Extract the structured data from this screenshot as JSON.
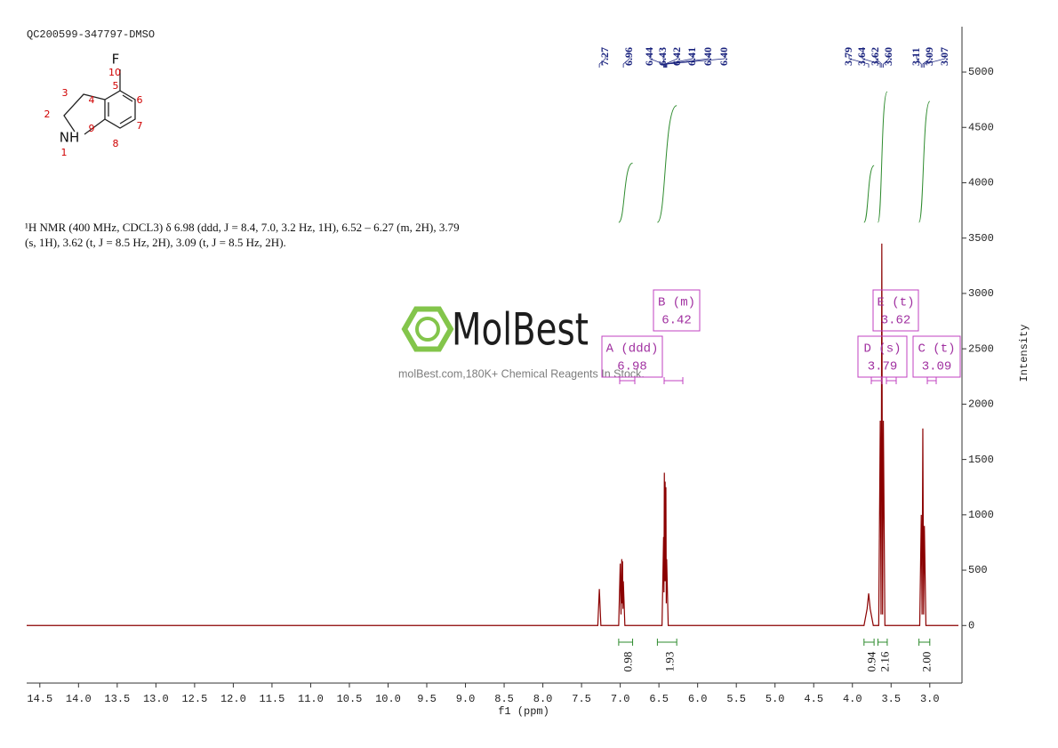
{
  "sample_id": "QC200599-347797-DMSO",
  "structure": {
    "atoms": [
      "F",
      "10",
      "3",
      "2",
      "4",
      "5",
      "6",
      "7",
      "8",
      "9",
      "NH",
      "1"
    ]
  },
  "description": [
    "¹H NMR (400 MHz, CDCL3) δ 6.98 (ddd, J = 8.4, 7.0, 3.2 Hz, 1H), 6.52 – 6.27 (m, 2H), 3.79",
    "(s, 1H), 3.62 (t, J = 8.5 Hz, 2H), 3.09 (t, J = 8.5 Hz, 2H)."
  ],
  "watermark": [
    "MolBest",
    "molBest.com,180K+ Chemical Reagents In Stock."
  ],
  "chart_data": {
    "type": "line",
    "x_label": "f1 (ppm)",
    "y_label": "Intensity",
    "color": "#8b0000",
    "x": [
      14.67,
      7.29,
      7.27,
      7.25,
      7.02,
      7.0,
      6.99,
      6.98,
      6.975,
      6.97,
      6.965,
      6.96,
      6.94,
      6.46,
      6.44,
      6.435,
      6.43,
      6.425,
      6.42,
      6.415,
      6.41,
      6.405,
      6.4,
      6.38,
      3.85,
      3.81,
      3.79,
      3.77,
      3.73,
      3.66,
      3.64,
      3.63,
      3.62,
      3.61,
      3.6,
      3.58,
      3.13,
      3.11,
      3.1,
      3.09,
      3.08,
      3.07,
      3.05,
      2.63
    ],
    "values": [
      0,
      0,
      330,
      0,
      0,
      560,
      100,
      600,
      200,
      580,
      150,
      400,
      0,
      0,
      800,
      300,
      1380,
      400,
      1300,
      400,
      1250,
      200,
      600,
      0,
      0,
      150,
      290,
      150,
      0,
      0,
      1850,
      100,
      3450,
      100,
      1850,
      0,
      0,
      1000,
      100,
      1780,
      100,
      900,
      0,
      0
    ],
    "xlim": [
      14.67,
      2.63
    ],
    "ylim": [
      -520,
      5410
    ],
    "xticks": [
      14.5,
      {
        "value": 14,
        "label": "14.0"
      },
      13.5,
      {
        "value": 13,
        "label": "13.0"
      },
      12.5,
      {
        "value": 12,
        "label": "12.0"
      },
      11.5,
      {
        "value": 11,
        "label": "11.0"
      },
      10.5,
      {
        "value": 10,
        "label": "10.0"
      },
      9.5,
      {
        "value": 9,
        "label": "9.0"
      },
      8.5,
      {
        "value": 8,
        "label": "8.0"
      },
      7.5,
      {
        "value": 7,
        "label": "7.0"
      },
      6.5,
      {
        "value": 6,
        "label": "6.0"
      },
      5.5,
      {
        "value": 5,
        "label": "5.0"
      },
      4.5,
      {
        "value": 4,
        "label": "4.0"
      },
      3.5,
      {
        "value": 3,
        "label": "3.0"
      }
    ],
    "yticks": [
      0,
      500,
      1000,
      1500,
      2000,
      2500,
      3000,
      3500,
      4000,
      4500,
      5000
    ],
    "peak_labels": [
      7.27,
      6.96,
      6.44,
      6.43,
      6.42,
      6.41,
      {
        "value": 6.4,
        "label": "6.40"
      },
      {
        "value": 6.4,
        "label": "6.40"
      },
      3.79,
      3.64,
      3.62,
      {
        "value": 3.6,
        "label": "3.60"
      },
      3.11,
      3.09,
      3.07
    ],
    "integrals": [
      {
        "range": [
          7.02,
          6.84
        ],
        "value": 0.98
      },
      {
        "range": [
          6.52,
          6.27
        ],
        "value": 1.93
      },
      {
        "range": [
          3.85,
          3.72
        ],
        "value": 0.94
      },
      {
        "range": [
          3.67,
          3.55
        ],
        "value": 2.16
      },
      {
        "range": [
          3.14,
          3.0
        ],
        "value": {
          "value": 2,
          "label": "2.00"
        }
      }
    ],
    "multiplets": [
      {
        "name": "A (ddd)",
        "shift": 6.98
      },
      {
        "name": "B (m)",
        "shift": 6.42
      },
      {
        "name": "C (t)",
        "shift": 3.09
      },
      {
        "name": "D (s)",
        "shift": 3.79
      },
      {
        "name": "E (t)",
        "shift": 3.62
      }
    ]
  }
}
